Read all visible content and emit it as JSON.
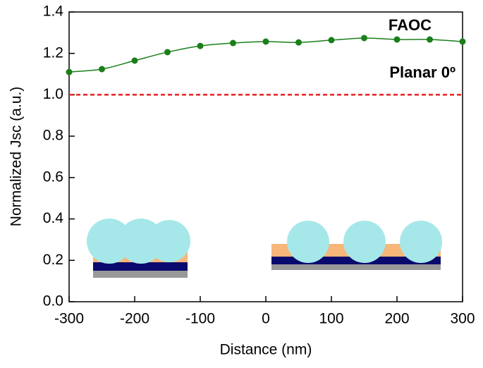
{
  "chart_data": {
    "type": "line",
    "x": [
      -300,
      -250,
      -200,
      -150,
      -100,
      -50,
      0,
      50,
      100,
      150,
      200,
      250,
      300
    ],
    "series": [
      {
        "name": "FAOC",
        "color": "#1a7f1a",
        "values": [
          1.11,
          1.124,
          1.165,
          1.206,
          1.236,
          1.25,
          1.257,
          1.253,
          1.264,
          1.274,
          1.267,
          1.267,
          1.257
        ]
      }
    ],
    "reference_line": {
      "name": "Planar 0º",
      "color": "#e82020",
      "value": 1.0
    },
    "xlabel": "Distance (nm)",
    "ylabel": "Normalized Jsc (a.u.)",
    "xlim": [
      -300,
      300
    ],
    "xticks": [
      -300,
      -200,
      -100,
      0,
      100,
      200,
      300
    ],
    "ylim": [
      0,
      1.4
    ],
    "yticks": [
      {
        "value": 0,
        "label": "0.0"
      },
      0.2,
      0.4,
      0.6,
      0.8,
      {
        "value": 1,
        "label": "1.0"
      },
      1.2,
      1.4
    ]
  }
}
